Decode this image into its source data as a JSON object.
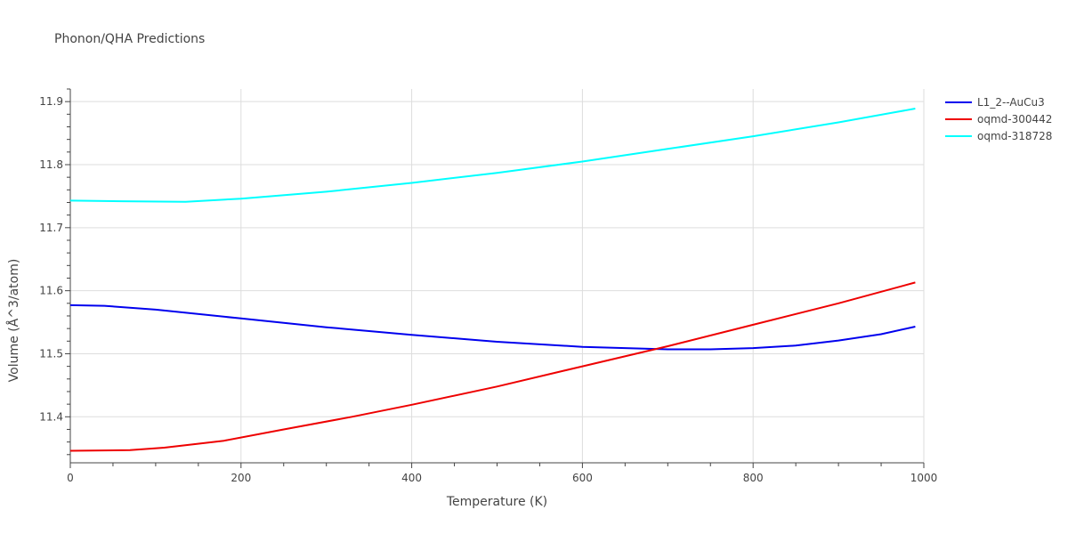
{
  "title": "Phonon/QHA Predictions",
  "chart_data": {
    "type": "line",
    "title": "Phonon/QHA Predictions",
    "xlabel": "Temperature (K)",
    "ylabel": "Volume (Å^3/atom)",
    "xlim": [
      0,
      1000
    ],
    "ylim": [
      11.327,
      11.92
    ],
    "xticks": [
      0,
      200,
      400,
      600,
      800,
      1000
    ],
    "yticks": [
      11.4,
      11.5,
      11.6,
      11.7,
      11.8,
      11.9
    ],
    "xtick_labels": [
      "0",
      "200",
      "400",
      "600",
      "800",
      "1000"
    ],
    "ytick_labels": [
      "11.4",
      "11.5",
      "11.6",
      "11.7",
      "11.8",
      "11.9"
    ],
    "grid": true,
    "legend": "top-right",
    "series": [
      {
        "name": "L1_2--AuCu3",
        "color": "#0000ee",
        "x": [
          0,
          40,
          100,
          200,
          300,
          400,
          500,
          600,
          700,
          750,
          800,
          850,
          900,
          950,
          990
        ],
        "y": [
          11.577,
          11.576,
          11.57,
          11.556,
          11.542,
          11.53,
          11.519,
          11.511,
          11.507,
          11.507,
          11.509,
          11.513,
          11.521,
          11.531,
          11.543
        ]
      },
      {
        "name": "oqmd-300442",
        "color": "#ee0000",
        "x": [
          0,
          70,
          110,
          180,
          250,
          330,
          400,
          500,
          600,
          700,
          800,
          900,
          990
        ],
        "y": [
          11.346,
          11.347,
          11.351,
          11.362,
          11.38,
          11.4,
          11.419,
          11.448,
          11.48,
          11.512,
          11.546,
          11.58,
          11.613
        ]
      },
      {
        "name": "oqmd-318728",
        "color": "#00ffff",
        "x": [
          0,
          60,
          135,
          200,
          300,
          400,
          500,
          600,
          700,
          800,
          900,
          990
        ],
        "y": [
          11.743,
          11.742,
          11.741,
          11.746,
          11.757,
          11.771,
          11.787,
          11.805,
          11.825,
          11.845,
          11.867,
          11.889
        ]
      }
    ]
  }
}
